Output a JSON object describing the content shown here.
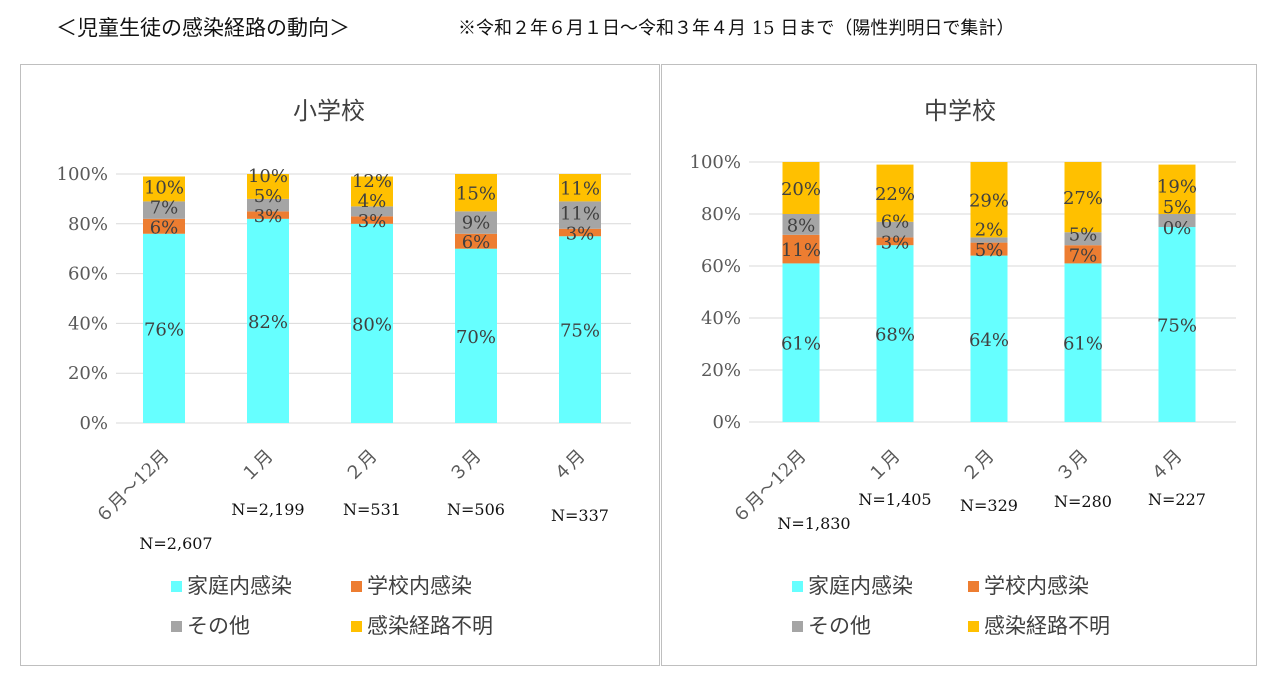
{
  "header": {
    "heading": "＜児童生徒の感染経路の動向＞",
    "note": "※令和２年６月１日～令和３年４月 15 日まで（陽性判明日で集計）"
  },
  "colors": {
    "家庭内感染": "#66ffff",
    "学校内感染": "#ed7d31",
    "その他": "#a5a5a5",
    "感染経路不明": "#ffc000"
  },
  "chart_data": [
    {
      "type": "bar",
      "stacked": true,
      "title": "小学校",
      "categories": [
        "６月～12月",
        "１月",
        "２月",
        "３月",
        "４月"
      ],
      "n_labels": [
        "N=2,607",
        "N=2,199",
        "N=531",
        "N=506",
        "N=337"
      ],
      "y_ticks": [
        "0%",
        "20%",
        "40%",
        "60%",
        "80%",
        "100%"
      ],
      "ylim": [
        0,
        100
      ],
      "series": [
        {
          "name": "家庭内感染",
          "values": [
            76,
            82,
            80,
            70,
            75
          ],
          "labels": [
            "76%",
            "82%",
            "80%",
            "70%",
            "75%"
          ]
        },
        {
          "name": "学校内感染",
          "values": [
            6,
            3,
            3,
            6,
            3
          ],
          "labels": [
            "6%",
            "3%",
            "3%",
            "6%",
            "3%"
          ]
        },
        {
          "name": "その他",
          "values": [
            7,
            5,
            4,
            9,
            11
          ],
          "labels": [
            "7%",
            "5%",
            "4%",
            "9%",
            "11%"
          ]
        },
        {
          "name": "感染経路不明",
          "values": [
            10,
            10,
            12,
            15,
            11
          ],
          "labels": [
            "10%",
            "10%",
            "12%",
            "15%",
            "11%"
          ]
        }
      ],
      "legend": [
        "家庭内感染",
        "学校内感染",
        "その他",
        "感染経路不明"
      ],
      "grid": true,
      "legend_position": "bottom"
    },
    {
      "type": "bar",
      "stacked": true,
      "title": "中学校",
      "categories": [
        "６月～12月",
        "１月",
        "２月",
        "３月",
        "４月"
      ],
      "n_labels": [
        "N=1,830",
        "N=1,405",
        "N=329",
        "N=280",
        "N=227"
      ],
      "y_ticks": [
        "0%",
        "20%",
        "40%",
        "60%",
        "80%",
        "100%"
      ],
      "ylim": [
        0,
        100
      ],
      "series": [
        {
          "name": "家庭内感染",
          "values": [
            61,
            68,
            64,
            61,
            75
          ],
          "labels": [
            "61%",
            "68%",
            "64%",
            "61%",
            "75%"
          ]
        },
        {
          "name": "学校内感染",
          "values": [
            11,
            3,
            5,
            7,
            0
          ],
          "labels": [
            "11%",
            "3%",
            "5%",
            "7%",
            "0%"
          ]
        },
        {
          "name": "その他",
          "values": [
            8,
            6,
            2,
            5,
            5
          ],
          "labels": [
            "8%",
            "6%",
            "2%",
            "5%",
            "5%"
          ]
        },
        {
          "name": "感染経路不明",
          "values": [
            20,
            22,
            29,
            27,
            19
          ],
          "labels": [
            "20%",
            "22%",
            "29%",
            "27%",
            "19%"
          ]
        }
      ],
      "legend": [
        "家庭内感染",
        "学校内感染",
        "その他",
        "感染経路不明"
      ],
      "grid": true,
      "legend_position": "bottom"
    }
  ]
}
